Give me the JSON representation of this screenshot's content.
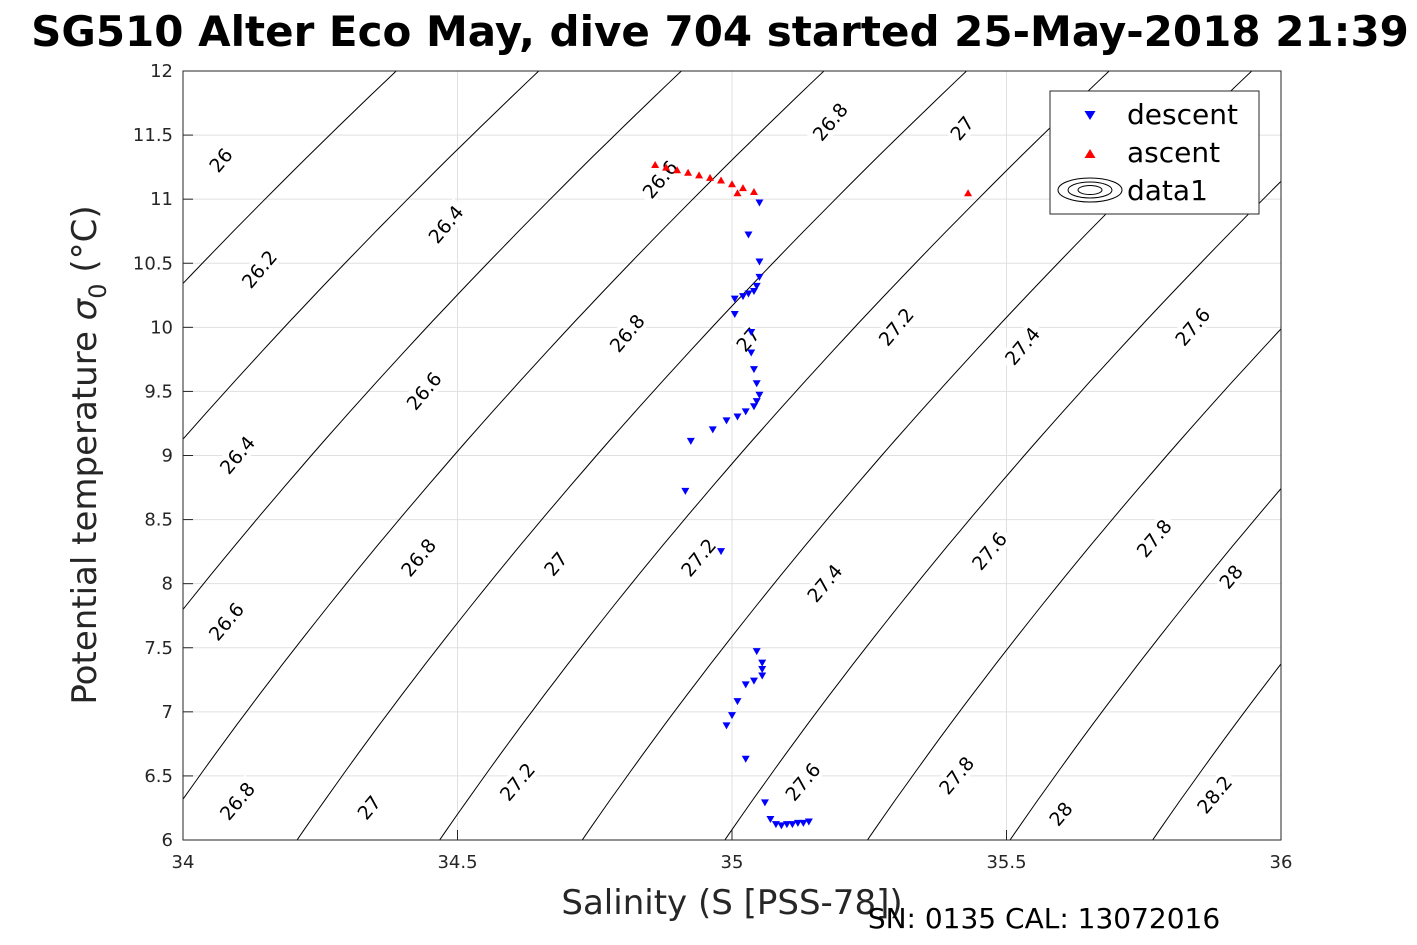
{
  "chart_data": {
    "type": "scatter",
    "title": "SG510 Alter Eco May, dive 704 started 25-May-2018 21:39",
    "xlabel": "Salinity (S [PSS-78])",
    "ylabel_main": "Potential temperature",
    "ylabel_sigma": "σ",
    "ylabel_sub": "0",
    "ylabel_unit": "(°C)",
    "footer": "SN: 0135  CAL: 13072016",
    "xlim": [
      34,
      36
    ],
    "ylim": [
      6,
      12
    ],
    "x_ticks": [
      34,
      34.5,
      35,
      35.5,
      36
    ],
    "x_tick_labels": [
      "34",
      "34.5",
      "35",
      "35.5",
      "36"
    ],
    "y_ticks": [
      6,
      6.5,
      7,
      7.5,
      8,
      8.5,
      9,
      9.5,
      10,
      10.5,
      11,
      11.5,
      12
    ],
    "y_tick_labels": [
      "6",
      "6.5",
      "7",
      "7.5",
      "8",
      "8.5",
      "9",
      "9.5",
      "10",
      "10.5",
      "11",
      "11.5",
      "12"
    ],
    "grid": true,
    "legend_position": "top-right",
    "legend": [
      "descent",
      "ascent",
      "data1"
    ],
    "colors": {
      "descent": "#0000ff",
      "ascent": "#ff0000",
      "contour": "#000000",
      "grid": "#e0e0e0"
    },
    "series": [
      {
        "name": "descent",
        "marker": "triangle-down",
        "points": [
          [
            35.05,
            10.97
          ],
          [
            35.03,
            10.72
          ],
          [
            35.05,
            10.51
          ],
          [
            35.05,
            10.39
          ],
          [
            35.045,
            10.32
          ],
          [
            35.04,
            10.28
          ],
          [
            35.03,
            10.26
          ],
          [
            35.02,
            10.24
          ],
          [
            35.005,
            10.22
          ],
          [
            35.005,
            10.1
          ],
          [
            35.035,
            9.96
          ],
          [
            35.035,
            9.8
          ],
          [
            35.04,
            9.67
          ],
          [
            35.045,
            9.56
          ],
          [
            35.05,
            9.47
          ],
          [
            35.045,
            9.42
          ],
          [
            35.04,
            9.38
          ],
          [
            35.025,
            9.34
          ],
          [
            35.01,
            9.3
          ],
          [
            34.99,
            9.27
          ],
          [
            34.965,
            9.2
          ],
          [
            34.925,
            9.11
          ],
          [
            34.915,
            8.72
          ],
          [
            34.98,
            8.25
          ],
          [
            35.045,
            7.47
          ],
          [
            35.055,
            7.38
          ],
          [
            35.055,
            7.33
          ],
          [
            35.055,
            7.28
          ],
          [
            35.04,
            7.24
          ],
          [
            35.025,
            7.21
          ],
          [
            35.01,
            7.08
          ],
          [
            35.0,
            6.97
          ],
          [
            34.99,
            6.89
          ],
          [
            35.025,
            6.63
          ],
          [
            35.06,
            6.29
          ],
          [
            35.07,
            6.16
          ],
          [
            35.08,
            6.12
          ],
          [
            35.09,
            6.11
          ],
          [
            35.1,
            6.12
          ],
          [
            35.11,
            6.12
          ],
          [
            35.12,
            6.13
          ],
          [
            35.13,
            6.13
          ],
          [
            35.14,
            6.14
          ]
        ]
      },
      {
        "name": "ascent",
        "marker": "triangle-up",
        "points": [
          [
            34.86,
            11.27
          ],
          [
            34.88,
            11.25
          ],
          [
            34.9,
            11.23
          ],
          [
            34.92,
            11.21
          ],
          [
            34.94,
            11.19
          ],
          [
            34.96,
            11.17
          ],
          [
            34.98,
            11.15
          ],
          [
            35.0,
            11.12
          ],
          [
            35.02,
            11.09
          ],
          [
            35.04,
            11.06
          ],
          [
            35.01,
            11.05
          ],
          [
            35.43,
            11.05
          ]
        ]
      }
    ],
    "contours": [
      {
        "level": 26,
        "label": "26",
        "label_at": [
          34.07,
          11.3
        ]
      },
      {
        "level": 26.2,
        "label": "26.2",
        "label_at": [
          34.14,
          10.45
        ]
      },
      {
        "level": 26.4,
        "label": "26.4",
        "label_at": [
          34.1,
          9.0
        ]
      },
      {
        "level": 26.4,
        "label": "26.4",
        "label_at": [
          34.48,
          10.8
        ]
      },
      {
        "level": 26.6,
        "label": "26.6",
        "label_at": [
          34.08,
          7.7
        ]
      },
      {
        "level": 26.6,
        "label": "26.6",
        "label_at": [
          34.44,
          9.5
        ]
      },
      {
        "level": 26.6,
        "label": "26.6",
        "label_at": [
          34.87,
          11.15
        ]
      },
      {
        "level": 26.8,
        "label": "26.8",
        "label_at": [
          34.1,
          6.3
        ]
      },
      {
        "level": 26.8,
        "label": "26.8",
        "label_at": [
          34.43,
          8.2
        ]
      },
      {
        "level": 26.8,
        "label": "26.8",
        "label_at": [
          34.81,
          9.95
        ]
      },
      {
        "level": 26.8,
        "label": "26.8",
        "label_at": [
          35.18,
          11.6
        ]
      },
      {
        "level": 27,
        "label": "27",
        "label_at": [
          34.34,
          6.25
        ]
      },
      {
        "level": 27,
        "label": "27",
        "label_at": [
          34.68,
          8.15
        ]
      },
      {
        "level": 27,
        "label": "27",
        "label_at": [
          35.03,
          9.9
        ]
      },
      {
        "level": 27,
        "label": "27",
        "label_at": [
          35.42,
          11.55
        ]
      },
      {
        "level": 27.2,
        "label": "27.2",
        "label_at": [
          34.61,
          6.45
        ]
      },
      {
        "level": 27.2,
        "label": "27.2",
        "label_at": [
          34.94,
          8.2
        ]
      },
      {
        "level": 27.2,
        "label": "27.2",
        "label_at": [
          35.3,
          10.0
        ]
      },
      {
        "level": 27.4,
        "label": "27.4",
        "label_at": [
          35.17,
          8.0
        ]
      },
      {
        "level": 27.4,
        "label": "27.4",
        "label_at": [
          35.53,
          9.85
        ]
      },
      {
        "level": 27.6,
        "label": "27.6",
        "label_at": [
          35.13,
          6.45
        ]
      },
      {
        "level": 27.6,
        "label": "27.6",
        "label_at": [
          35.47,
          8.25
        ]
      },
      {
        "level": 27.6,
        "label": "27.6",
        "label_at": [
          35.84,
          10.0
        ]
      },
      {
        "level": 27.8,
        "label": "27.8",
        "label_at": [
          35.41,
          6.5
        ]
      },
      {
        "level": 27.8,
        "label": "27.8",
        "label_at": [
          35.77,
          8.35
        ]
      },
      {
        "level": 28,
        "label": "28",
        "label_at": [
          35.6,
          6.2
        ]
      },
      {
        "level": 28,
        "label": "28",
        "label_at": [
          35.91,
          8.05
        ]
      },
      {
        "level": 28.2,
        "label": "28.2",
        "label_at": [
          35.88,
          6.35
        ]
      }
    ]
  }
}
